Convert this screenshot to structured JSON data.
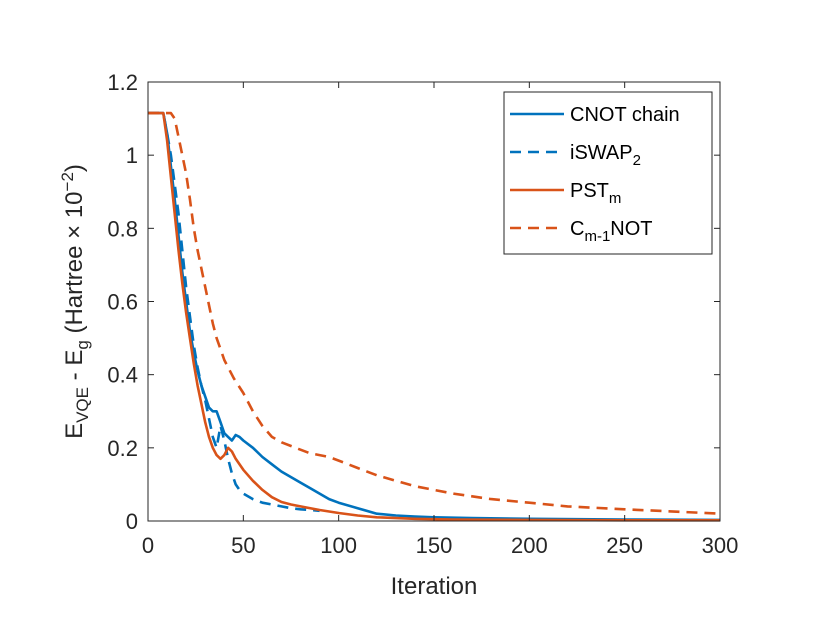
{
  "chart_data": {
    "type": "line",
    "title": "",
    "xlabel": "Iteration",
    "ylabel": {
      "base": "E",
      "sub1": "VQE",
      "mid": " - E",
      "sub2": "g",
      "rest": " (Hartree × 10",
      "sup": "−2",
      "end": ")"
    },
    "xlim": [
      0,
      300
    ],
    "ylim": [
      0,
      1.2
    ],
    "xticks": [
      "0",
      "50",
      "100",
      "150",
      "200",
      "250",
      "300"
    ],
    "yticks": [
      "0",
      "0.2",
      "0.4",
      "0.6",
      "0.8",
      "1",
      "1.2"
    ],
    "grid": false,
    "legend_position": "top-right",
    "series": [
      {
        "name": "CNOT chain",
        "name_parts": [
          "CNOT chain",
          ""
        ],
        "color": "#0072BD",
        "dash": "solid",
        "x": [
          0,
          8,
          10,
          12,
          14,
          16,
          18,
          20,
          22,
          24,
          26,
          28,
          30,
          32,
          34,
          36,
          38,
          40,
          42,
          44,
          46,
          48,
          50,
          55,
          60,
          65,
          70,
          75,
          80,
          85,
          90,
          95,
          100,
          110,
          120,
          130,
          140,
          150,
          170,
          200,
          250,
          300
        ],
        "y": [
          1.115,
          1.115,
          1.06,
          0.97,
          0.88,
          0.78,
          0.68,
          0.6,
          0.52,
          0.46,
          0.41,
          0.37,
          0.34,
          0.31,
          0.3,
          0.3,
          0.27,
          0.24,
          0.23,
          0.22,
          0.235,
          0.23,
          0.22,
          0.2,
          0.175,
          0.155,
          0.135,
          0.12,
          0.105,
          0.09,
          0.075,
          0.06,
          0.05,
          0.035,
          0.02,
          0.015,
          0.012,
          0.01,
          0.008,
          0.006,
          0.004,
          0.003
        ]
      },
      {
        "name": "iSWAP2",
        "name_parts": [
          "iSWAP",
          "2"
        ],
        "color": "#0072BD",
        "dash": "dashed",
        "x": [
          0,
          8,
          10,
          12,
          14,
          16,
          18,
          20,
          22,
          24,
          26,
          28,
          30,
          32,
          34,
          36,
          38,
          40,
          42,
          44,
          46,
          48,
          50,
          55,
          60,
          65,
          70,
          75,
          80,
          85,
          90
        ],
        "y": [
          1.115,
          1.115,
          1.06,
          1.0,
          0.92,
          0.84,
          0.74,
          0.64,
          0.56,
          0.48,
          0.42,
          0.37,
          0.33,
          0.28,
          0.23,
          0.2,
          0.26,
          0.22,
          0.17,
          0.13,
          0.1,
          0.085,
          0.075,
          0.06,
          0.05,
          0.045,
          0.04,
          0.035,
          0.032,
          0.03,
          0.028
        ]
      },
      {
        "name": "PSTm",
        "name_parts": [
          "PST",
          "m"
        ],
        "color": "#D95319",
        "dash": "solid",
        "x": [
          0,
          8,
          10,
          12,
          14,
          16,
          18,
          20,
          22,
          24,
          26,
          28,
          30,
          32,
          34,
          36,
          38,
          40,
          42,
          44,
          46,
          48,
          50,
          55,
          60,
          65,
          70,
          75,
          80,
          90,
          100,
          110,
          120,
          140,
          160,
          200,
          250,
          300
        ],
        "y": [
          1.115,
          1.115,
          1.04,
          0.94,
          0.84,
          0.74,
          0.65,
          0.57,
          0.5,
          0.43,
          0.37,
          0.32,
          0.27,
          0.23,
          0.2,
          0.18,
          0.17,
          0.18,
          0.2,
          0.19,
          0.17,
          0.155,
          0.14,
          0.11,
          0.085,
          0.065,
          0.052,
          0.045,
          0.04,
          0.03,
          0.022,
          0.015,
          0.01,
          0.006,
          0.004,
          0.003,
          0.002,
          0.002
        ]
      },
      {
        "name": "Cm-1NOT",
        "name_parts": [
          "C",
          "m-1",
          "NOT"
        ],
        "color": "#D95319",
        "dash": "dashed",
        "x": [
          0,
          12,
          14,
          16,
          18,
          20,
          22,
          24,
          26,
          28,
          30,
          32,
          34,
          36,
          38,
          40,
          45,
          50,
          55,
          60,
          65,
          70,
          75,
          80,
          85,
          90,
          95,
          100,
          110,
          120,
          130,
          140,
          150,
          160,
          180,
          200,
          220,
          250,
          280,
          300
        ],
        "y": [
          1.115,
          1.115,
          1.1,
          1.05,
          1.0,
          0.95,
          0.88,
          0.8,
          0.74,
          0.69,
          0.64,
          0.59,
          0.54,
          0.5,
          0.47,
          0.44,
          0.39,
          0.35,
          0.3,
          0.26,
          0.23,
          0.215,
          0.205,
          0.195,
          0.185,
          0.18,
          0.175,
          0.165,
          0.145,
          0.125,
          0.11,
          0.095,
          0.085,
          0.075,
          0.06,
          0.05,
          0.04,
          0.032,
          0.025,
          0.02
        ]
      }
    ]
  }
}
